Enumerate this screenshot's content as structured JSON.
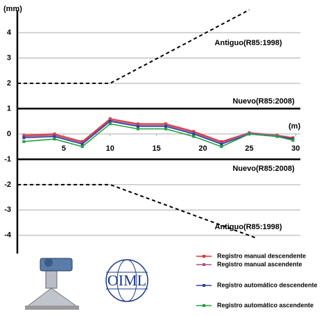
{
  "chart_data": {
    "type": "line",
    "y_label": "(mm)",
    "x_label": "(m)",
    "xlim": [
      0,
      30.5
    ],
    "ylim": [
      -4.8,
      5
    ],
    "xticks": [
      5,
      10,
      15,
      20,
      25,
      30
    ],
    "yticks": [
      -4,
      -3,
      -2,
      -1,
      0,
      1,
      2,
      3,
      4
    ],
    "grid": true,
    "x": [
      0.7,
      4,
      7,
      10,
      13,
      16,
      19,
      22,
      25,
      28,
      29.7
    ],
    "series": [
      {
        "name": "Registro manual descendente",
        "color": "#e03030",
        "values": [
          -0.05,
          0.0,
          -0.3,
          0.6,
          0.4,
          0.4,
          0.1,
          -0.3,
          0.05,
          -0.05,
          -0.15
        ]
      },
      {
        "name": "Registro manual ascendente",
        "color": "#b05080",
        "values": [
          -0.1,
          -0.05,
          -0.35,
          0.55,
          0.35,
          0.35,
          0.05,
          -0.35,
          0.05,
          -0.05,
          -0.2
        ]
      },
      {
        "name": "Registro automático descendente",
        "color": "#3040a0",
        "values": [
          -0.15,
          -0.1,
          -0.4,
          0.5,
          0.3,
          0.3,
          0.0,
          -0.4,
          0.0,
          -0.1,
          -0.2
        ]
      },
      {
        "name": "Registro automático ascendente",
        "color": "#20a040",
        "values": [
          -0.3,
          -0.2,
          -0.5,
          0.4,
          0.2,
          0.2,
          -0.1,
          -0.5,
          0.0,
          -0.1,
          -0.25
        ]
      }
    ],
    "limits": [
      {
        "label": "Antiguo(R85:1998)",
        "style": "dashed",
        "x": [
          0,
          10,
          25
        ],
        "values": [
          2,
          2,
          4.9
        ]
      },
      {
        "label": "Nuevo(R85:2008)",
        "style": "solid",
        "x": [
          0,
          30.5
        ],
        "values": [
          1,
          1
        ]
      },
      {
        "label": "Nuevo(R85:2008)",
        "style": "solid",
        "x": [
          0,
          30.5
        ],
        "values": [
          -1,
          -1
        ]
      },
      {
        "label": "Antiguo(R85:1998)",
        "style": "dashed",
        "x": [
          0,
          10,
          25.7
        ],
        "values": [
          -2,
          -2,
          -4.1
        ]
      }
    ],
    "logo": "OIML"
  }
}
